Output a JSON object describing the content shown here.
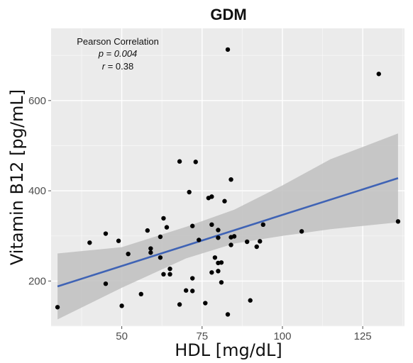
{
  "chart_data": {
    "type": "scatter",
    "title": "GDM",
    "xlabel": "HDL [mg/dL]",
    "ylabel": "Vitamin B12 [pg/mL]",
    "xlim": [
      28,
      138
    ],
    "ylim": [
      100,
      760
    ],
    "x_ticks": [
      50,
      75,
      100,
      125
    ],
    "y_ticks": [
      200,
      400,
      600
    ],
    "x_tick_labels": [
      "50",
      "75",
      "100",
      "125"
    ],
    "y_tick_labels": [
      "200",
      "400",
      "600"
    ],
    "grid": true,
    "background": "#ebebeb",
    "point_color": "#000000",
    "fit_color": "#3f63b5",
    "band_color": "#bfbfbf",
    "annotation": {
      "heading": "Pearson Correlation",
      "p_text": "p = 0.004",
      "r_prefix": "r",
      "r_value": " = 0.38"
    },
    "fit_line": {
      "x": [
        30,
        136
      ],
      "y": [
        188,
        428
      ]
    },
    "confidence_band": {
      "x": [
        30,
        50,
        70,
        85,
        100,
        115,
        136
      ],
      "lower": [
        115,
        185,
        250,
        283,
        300,
        315,
        330
      ],
      "upper": [
        261,
        275,
        320,
        358,
        412,
        470,
        527
      ]
    },
    "points": [
      {
        "x": 30,
        "y": 142
      },
      {
        "x": 40,
        "y": 285
      },
      {
        "x": 45,
        "y": 305
      },
      {
        "x": 45,
        "y": 194
      },
      {
        "x": 49,
        "y": 289
      },
      {
        "x": 50,
        "y": 145
      },
      {
        "x": 52,
        "y": 260
      },
      {
        "x": 56,
        "y": 171
      },
      {
        "x": 58,
        "y": 312
      },
      {
        "x": 59,
        "y": 272
      },
      {
        "x": 59,
        "y": 263
      },
      {
        "x": 62,
        "y": 298
      },
      {
        "x": 62,
        "y": 252
      },
      {
        "x": 63,
        "y": 215
      },
      {
        "x": 63,
        "y": 339
      },
      {
        "x": 64,
        "y": 319
      },
      {
        "x": 65,
        "y": 215
      },
      {
        "x": 65,
        "y": 227
      },
      {
        "x": 68,
        "y": 465
      },
      {
        "x": 68,
        "y": 148
      },
      {
        "x": 70,
        "y": 179
      },
      {
        "x": 71,
        "y": 397
      },
      {
        "x": 72,
        "y": 206
      },
      {
        "x": 72,
        "y": 178
      },
      {
        "x": 72,
        "y": 322
      },
      {
        "x": 73,
        "y": 464
      },
      {
        "x": 74,
        "y": 291
      },
      {
        "x": 76,
        "y": 151
      },
      {
        "x": 77,
        "y": 384
      },
      {
        "x": 78,
        "y": 219
      },
      {
        "x": 78,
        "y": 387
      },
      {
        "x": 78,
        "y": 325
      },
      {
        "x": 79,
        "y": 252
      },
      {
        "x": 80,
        "y": 240
      },
      {
        "x": 80,
        "y": 222
      },
      {
        "x": 80,
        "y": 313
      },
      {
        "x": 80,
        "y": 296
      },
      {
        "x": 81,
        "y": 241
      },
      {
        "x": 81,
        "y": 197
      },
      {
        "x": 82,
        "y": 377
      },
      {
        "x": 83,
        "y": 126
      },
      {
        "x": 83,
        "y": 713
      },
      {
        "x": 84,
        "y": 297
      },
      {
        "x": 84,
        "y": 280
      },
      {
        "x": 84,
        "y": 425
      },
      {
        "x": 85,
        "y": 299
      },
      {
        "x": 89,
        "y": 287
      },
      {
        "x": 90,
        "y": 157
      },
      {
        "x": 92,
        "y": 276
      },
      {
        "x": 93,
        "y": 288
      },
      {
        "x": 94,
        "y": 325
      },
      {
        "x": 106,
        "y": 310
      },
      {
        "x": 130,
        "y": 659
      },
      {
        "x": 136,
        "y": 332
      }
    ]
  }
}
